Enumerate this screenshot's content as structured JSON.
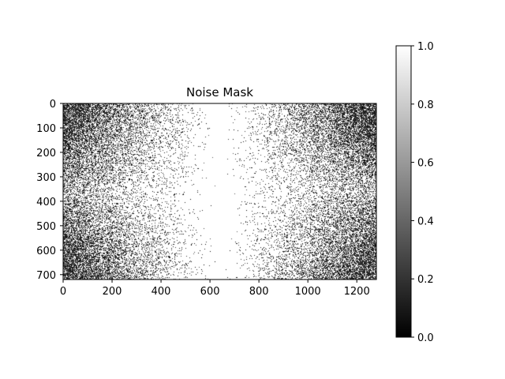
{
  "chart_data": {
    "type": "heatmap",
    "title": "Noise Mask",
    "xlabel": "",
    "ylabel": "",
    "colormap": "gray",
    "colormap_colors": {
      "low": "#000000",
      "high": "#ffffff"
    },
    "xlim": [
      0,
      1280
    ],
    "ylim": [
      720,
      0
    ],
    "xticks": [
      0,
      200,
      400,
      600,
      800,
      1000,
      1200
    ],
    "yticks": [
      0,
      100,
      200,
      300,
      400,
      500,
      600,
      700
    ],
    "colorbar": {
      "range": [
        0.0,
        1.0
      ],
      "ticks": [
        0.0,
        0.2,
        0.4,
        0.6,
        0.8,
        1.0
      ],
      "tick_labels": [
        "0.0",
        "0.2",
        "0.4",
        "0.6",
        "0.8",
        "1.0"
      ]
    },
    "pattern": "random binary noise mask; mostly white (value 1) in the center column around x≈640 and along a horizontal band near y≈360, increasingly dark (value 0) toward the four corners",
    "grid": false
  }
}
